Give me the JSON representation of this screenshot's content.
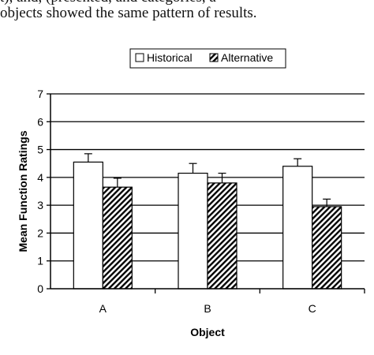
{
  "caption": {
    "line1": "t), and, (presented, and categories, a",
    "line2": "objects showed the same pattern of results."
  },
  "chart_data": {
    "type": "bar",
    "categories": [
      "A",
      "B",
      "C"
    ],
    "series": [
      {
        "name": "Historical",
        "values": [
          4.55,
          4.15,
          4.4
        ],
        "errors": [
          0.3,
          0.35,
          0.27
        ],
        "fill": "white"
      },
      {
        "name": "Alternative",
        "values": [
          3.65,
          3.8,
          2.95
        ],
        "errors": [
          0.32,
          0.35,
          0.27
        ],
        "fill": "hatched"
      }
    ],
    "xlabel": "Object",
    "ylabel": "Mean Function Ratings",
    "ylim": [
      0,
      7
    ],
    "yticks": [
      "0",
      "1",
      "2",
      "3",
      "4",
      "5",
      "6",
      "7"
    ],
    "grid": true,
    "legend_position": "top-right"
  }
}
